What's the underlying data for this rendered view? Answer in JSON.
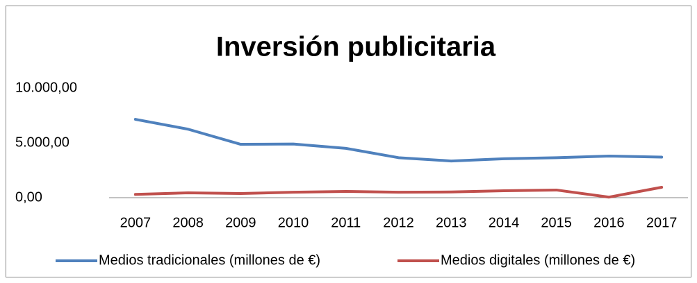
{
  "chart_data": {
    "type": "line",
    "title": "Inversión publicitaria",
    "categories": [
      "2007",
      "2008",
      "2009",
      "2010",
      "2011",
      "2012",
      "2013",
      "2014",
      "2015",
      "2016",
      "2017"
    ],
    "series": [
      {
        "name": "Medios tradicionales (millones de €)",
        "color": "#4f81bd",
        "values": [
          7150,
          6250,
          4870,
          4900,
          4500,
          3650,
          3350,
          3550,
          3650,
          3800,
          3700
        ]
      },
      {
        "name": "Medios digitales (millones de €)",
        "color": "#c0504d",
        "values": [
          300,
          440,
          380,
          500,
          570,
          500,
          520,
          630,
          700,
          50,
          950
        ]
      }
    ],
    "ylim": [
      0,
      10000
    ],
    "yticks": [
      {
        "value": 0,
        "label": "0,00"
      },
      {
        "value": 5000,
        "label": "5.000,00"
      },
      {
        "value": 10000,
        "label": "10.000,00"
      }
    ],
    "grid": false,
    "legend": "bottom"
  }
}
